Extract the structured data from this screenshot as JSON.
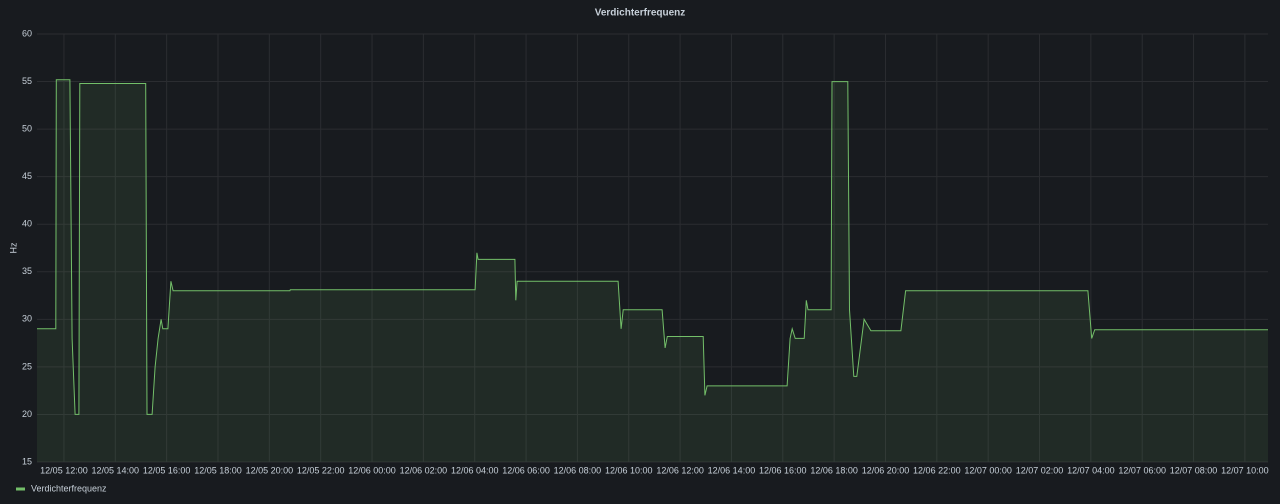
{
  "chart_data": {
    "type": "line",
    "title": "Verdichterfrequenz",
    "y_label": "Hz",
    "x": [
      "12/05 10:57",
      "12/05 11:41",
      "12/05 11:42",
      "12/05 12:14",
      "12/05 12:19",
      "12/05 12:26",
      "12/05 12:35",
      "12/05 12:37",
      "12/05 15:11",
      "12/05 15:14",
      "12/05 15:26",
      "12/05 15:33",
      "12/05 15:40",
      "12/05 15:47",
      "12/05 15:51",
      "12/05 16:03",
      "12/05 16:10",
      "12/05 16:15",
      "12/05 20:48",
      "12/05 20:49",
      "12/06 04:01",
      "12/06 04:05",
      "12/06 04:08",
      "12/06 05:34",
      "12/06 05:36",
      "12/06 05:39",
      "12/06 09:35",
      "12/06 09:42",
      "12/06 09:47",
      "12/06 11:18",
      "12/06 11:25",
      "12/06 11:30",
      "12/06 12:54",
      "12/06 12:58",
      "12/06 13:03",
      "12/06 16:10",
      "12/06 16:17",
      "12/06 16:22",
      "12/06 16:29",
      "12/06 16:50",
      "12/06 16:55",
      "12/06 16:59",
      "12/06 17:53",
      "12/06 17:55",
      "12/06 18:32",
      "12/06 18:36",
      "12/06 18:46",
      "12/06 18:53",
      "12/06 19:10",
      "12/06 19:26",
      "12/06 20:36",
      "12/06 20:47",
      "12/07 03:53",
      "12/07 04:02",
      "12/07 04:09",
      "12/07 10:54"
    ],
    "series": [
      {
        "name": "Verdichterfrequenz",
        "color": "#73bf69",
        "values": [
          29,
          29,
          55.2,
          55.2,
          28,
          20,
          20,
          54.8,
          54.8,
          20,
          20,
          25,
          28,
          30,
          29,
          29,
          34,
          33,
          33,
          33.1,
          33.1,
          37,
          36.3,
          36.3,
          32,
          34,
          34,
          29,
          31,
          31,
          27,
          28.2,
          28.2,
          22,
          23,
          23,
          28,
          29,
          28,
          28,
          32,
          31,
          31,
          55,
          55,
          31,
          24,
          24,
          30,
          28.8,
          28.8,
          33,
          33,
          28,
          28.9,
          28.9
        ]
      }
    ],
    "xlim": [
      "12/05 10:57",
      "12/07 10:54"
    ],
    "xticks": [
      "12/05 12:00",
      "12/05 14:00",
      "12/05 16:00",
      "12/05 18:00",
      "12/05 20:00",
      "12/05 22:00",
      "12/06 00:00",
      "12/06 02:00",
      "12/06 04:00",
      "12/06 06:00",
      "12/06 08:00",
      "12/06 10:00",
      "12/06 12:00",
      "12/06 14:00",
      "12/06 16:00",
      "12/06 18:00",
      "12/06 20:00",
      "12/06 22:00",
      "12/07 00:00",
      "12/07 02:00",
      "12/07 04:00",
      "12/07 06:00",
      "12/07 08:00",
      "12/07 10:00"
    ],
    "ylim": [
      15,
      60
    ],
    "yticks": [
      15,
      20,
      25,
      30,
      35,
      40,
      45,
      50,
      55,
      60
    ],
    "grid": true,
    "legend": "bottom-left"
  }
}
